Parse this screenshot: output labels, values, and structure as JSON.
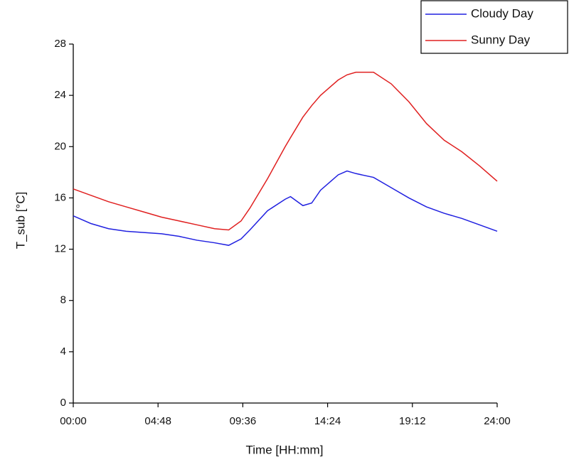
{
  "chart_data": {
    "type": "line",
    "x_label": "Time [HH:mm]",
    "y_label": "T_sub [°C]",
    "x": [
      0,
      1,
      2,
      3,
      4,
      5,
      6,
      7,
      8,
      8.8,
      9.5,
      10,
      11,
      12,
      12.3,
      13,
      13.5,
      14,
      15,
      15.5,
      16,
      17,
      18,
      19,
      20,
      21,
      22,
      23,
      24
    ],
    "series": [
      {
        "name": "Cloudy Day",
        "color": "#2020e0",
        "values": [
          14.6,
          14.0,
          13.6,
          13.4,
          13.3,
          13.2,
          13.0,
          12.7,
          12.5,
          12.3,
          12.8,
          13.5,
          15.0,
          15.9,
          16.1,
          15.4,
          15.6,
          16.6,
          17.8,
          18.1,
          17.9,
          17.6,
          16.8,
          16.0,
          15.3,
          14.8,
          14.4,
          13.9,
          13.4
        ]
      },
      {
        "name": "Sunny Day",
        "color": "#e02020",
        "values": [
          16.7,
          16.2,
          15.7,
          15.3,
          14.9,
          14.5,
          14.2,
          13.9,
          13.6,
          13.5,
          14.2,
          15.2,
          17.5,
          20.0,
          20.7,
          22.3,
          23.2,
          24.0,
          25.2,
          25.6,
          25.8,
          25.8,
          24.9,
          23.5,
          21.8,
          20.5,
          19.6,
          18.5,
          17.3
        ]
      }
    ],
    "xlim": [
      0,
      24
    ],
    "xticks": [
      {
        "value": 0,
        "label": "00:00"
      },
      {
        "value": 4.8,
        "label": "04:48"
      },
      {
        "value": 9.6,
        "label": "09:36"
      },
      {
        "value": 14.4,
        "label": "14:24"
      },
      {
        "value": 19.2,
        "label": "19:12"
      },
      {
        "value": 24,
        "label": "24:00"
      }
    ],
    "ylim": [
      0,
      28
    ],
    "yticks": [
      0,
      4,
      8,
      12,
      16,
      20,
      24,
      28
    ],
    "grid": false,
    "legend": "upper right"
  }
}
